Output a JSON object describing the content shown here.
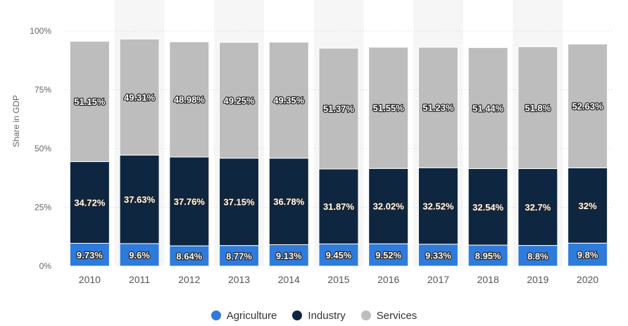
{
  "chart_data": {
    "type": "bar",
    "stacked": true,
    "title": "",
    "xlabel": "",
    "ylabel": "Share in GDP",
    "ylim": [
      0,
      100
    ],
    "yticks": [
      "0%",
      "25%",
      "50%",
      "75%",
      "100%"
    ],
    "grid": true,
    "legend_position": "bottom",
    "categories": [
      "2010",
      "2011",
      "2012",
      "2013",
      "2014",
      "2015",
      "2016",
      "2017",
      "2018",
      "2019",
      "2020"
    ],
    "series": [
      {
        "name": "Agriculture",
        "color": "#2f7bdb",
        "values": [
          9.73,
          9.6,
          8.64,
          8.77,
          9.13,
          9.45,
          9.52,
          9.33,
          8.95,
          8.8,
          9.8
        ],
        "labels": [
          "9.73%",
          "9.6%",
          "8.64%",
          "8.77%",
          "9.13%",
          "9.45%",
          "9.52%",
          "9.33%",
          "8.95%",
          "8.8%",
          "9.8%"
        ]
      },
      {
        "name": "Industry",
        "color": "#0f2640",
        "values": [
          34.72,
          37.63,
          37.76,
          37.15,
          36.78,
          31.87,
          32.02,
          32.52,
          32.54,
          32.7,
          32
        ],
        "labels": [
          "34.72%",
          "37.63%",
          "37.76%",
          "37.15%",
          "36.78%",
          "31.87%",
          "32.02%",
          "32.52%",
          "32.54%",
          "32.7%",
          "32%"
        ]
      },
      {
        "name": "Services",
        "color": "#bdbdbd",
        "values": [
          51.15,
          49.31,
          48.98,
          49.25,
          49.35,
          51.37,
          51.55,
          51.23,
          51.44,
          51.8,
          52.63
        ],
        "labels": [
          "51.15%",
          "49.31%",
          "48.98%",
          "49.25%",
          "49.35%",
          "51.37%",
          "51.55%",
          "51.23%",
          "51.44%",
          "51.8%",
          "52.63%"
        ]
      }
    ]
  },
  "legend": {
    "items": [
      {
        "label": "Agriculture",
        "color": "#2f7bdb"
      },
      {
        "label": "Industry",
        "color": "#0f2640"
      },
      {
        "label": "Services",
        "color": "#bdbdbd"
      }
    ]
  }
}
